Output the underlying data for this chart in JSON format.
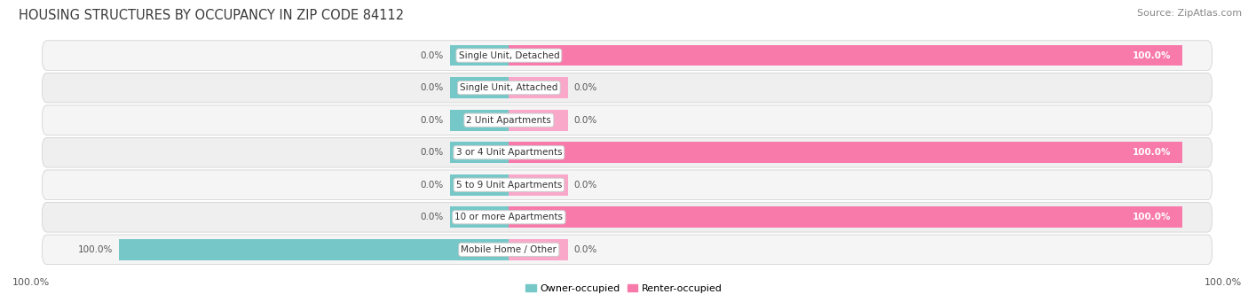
{
  "title": "HOUSING STRUCTURES BY OCCUPANCY IN ZIP CODE 84112",
  "source": "Source: ZipAtlas.com",
  "categories": [
    "Single Unit, Detached",
    "Single Unit, Attached",
    "2 Unit Apartments",
    "3 or 4 Unit Apartments",
    "5 to 9 Unit Apartments",
    "10 or more Apartments",
    "Mobile Home / Other"
  ],
  "owner_values": [
    0.0,
    0.0,
    0.0,
    0.0,
    0.0,
    0.0,
    100.0
  ],
  "renter_values": [
    100.0,
    0.0,
    0.0,
    100.0,
    0.0,
    100.0,
    0.0
  ],
  "owner_color": "#76c8c8",
  "renter_color": "#f87aaa",
  "renter_stub_color": "#f9a8c9",
  "row_bg_color": "#f0f0f0",
  "row_bg_alt": "#e8e8e8",
  "title_fontsize": 10.5,
  "source_fontsize": 8,
  "label_fontsize": 7.5,
  "cat_fontsize": 7.5,
  "axis_label_fontsize": 8,
  "background_color": "#ffffff"
}
